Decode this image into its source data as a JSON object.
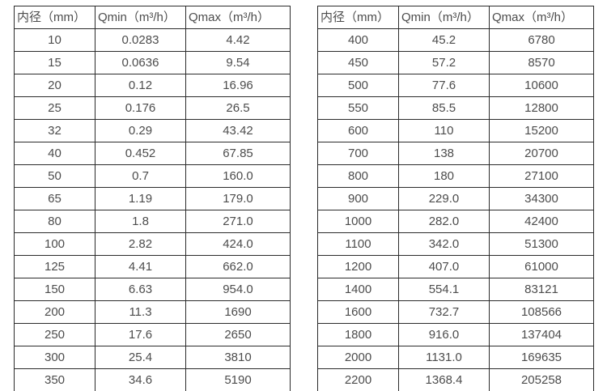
{
  "colors": {
    "border": "#2b2b2b",
    "text": "#4c4c4c",
    "background": "#ffffff"
  },
  "tables": [
    {
      "name": "flow-rate-table-small-diameters",
      "headers": [
        "内径（mm）",
        "Qmin（m³/h）",
        "Qmax（m³/h）"
      ],
      "rows": [
        [
          "10",
          "0.0283",
          "4.42"
        ],
        [
          "15",
          "0.0636",
          "9.54"
        ],
        [
          "20",
          "0.12",
          "16.96"
        ],
        [
          "25",
          "0.176",
          "26.5"
        ],
        [
          "32",
          "0.29",
          "43.42"
        ],
        [
          "40",
          "0.452",
          "67.85"
        ],
        [
          "50",
          "0.7",
          "160.0"
        ],
        [
          "65",
          "1.19",
          "179.0"
        ],
        [
          "80",
          "1.8",
          "271.0"
        ],
        [
          "100",
          "2.82",
          "424.0"
        ],
        [
          "125",
          "4.41",
          "662.0"
        ],
        [
          "150",
          "6.63",
          "954.0"
        ],
        [
          "200",
          "11.3",
          "1690"
        ],
        [
          "250",
          "17.6",
          "2650"
        ],
        [
          "300",
          "25.4",
          "3810"
        ],
        [
          "350",
          "34.6",
          "5190"
        ]
      ]
    },
    {
      "name": "flow-rate-table-large-diameters",
      "headers": [
        "内径（mm）",
        "Qmin（m³/h）",
        "Qmax（m³/h）"
      ],
      "rows": [
        [
          "400",
          "45.2",
          "6780"
        ],
        [
          "450",
          "57.2",
          "8570"
        ],
        [
          "500",
          "77.6",
          "10600"
        ],
        [
          "550",
          "85.5",
          "12800"
        ],
        [
          "600",
          "110",
          "15200"
        ],
        [
          "700",
          "138",
          "20700"
        ],
        [
          "800",
          "180",
          "27100"
        ],
        [
          "900",
          "229.0",
          "34300"
        ],
        [
          "1000",
          "282.0",
          "42400"
        ],
        [
          "1100",
          "342.0",
          "51300"
        ],
        [
          "1200",
          "407.0",
          "61000"
        ],
        [
          "1400",
          "554.1",
          "83121"
        ],
        [
          "1600",
          "732.7",
          "108566"
        ],
        [
          "1800",
          "916.0",
          "137404"
        ],
        [
          "2000",
          "1131.0",
          "169635"
        ],
        [
          "2200",
          "1368.4",
          "205258"
        ]
      ]
    }
  ]
}
